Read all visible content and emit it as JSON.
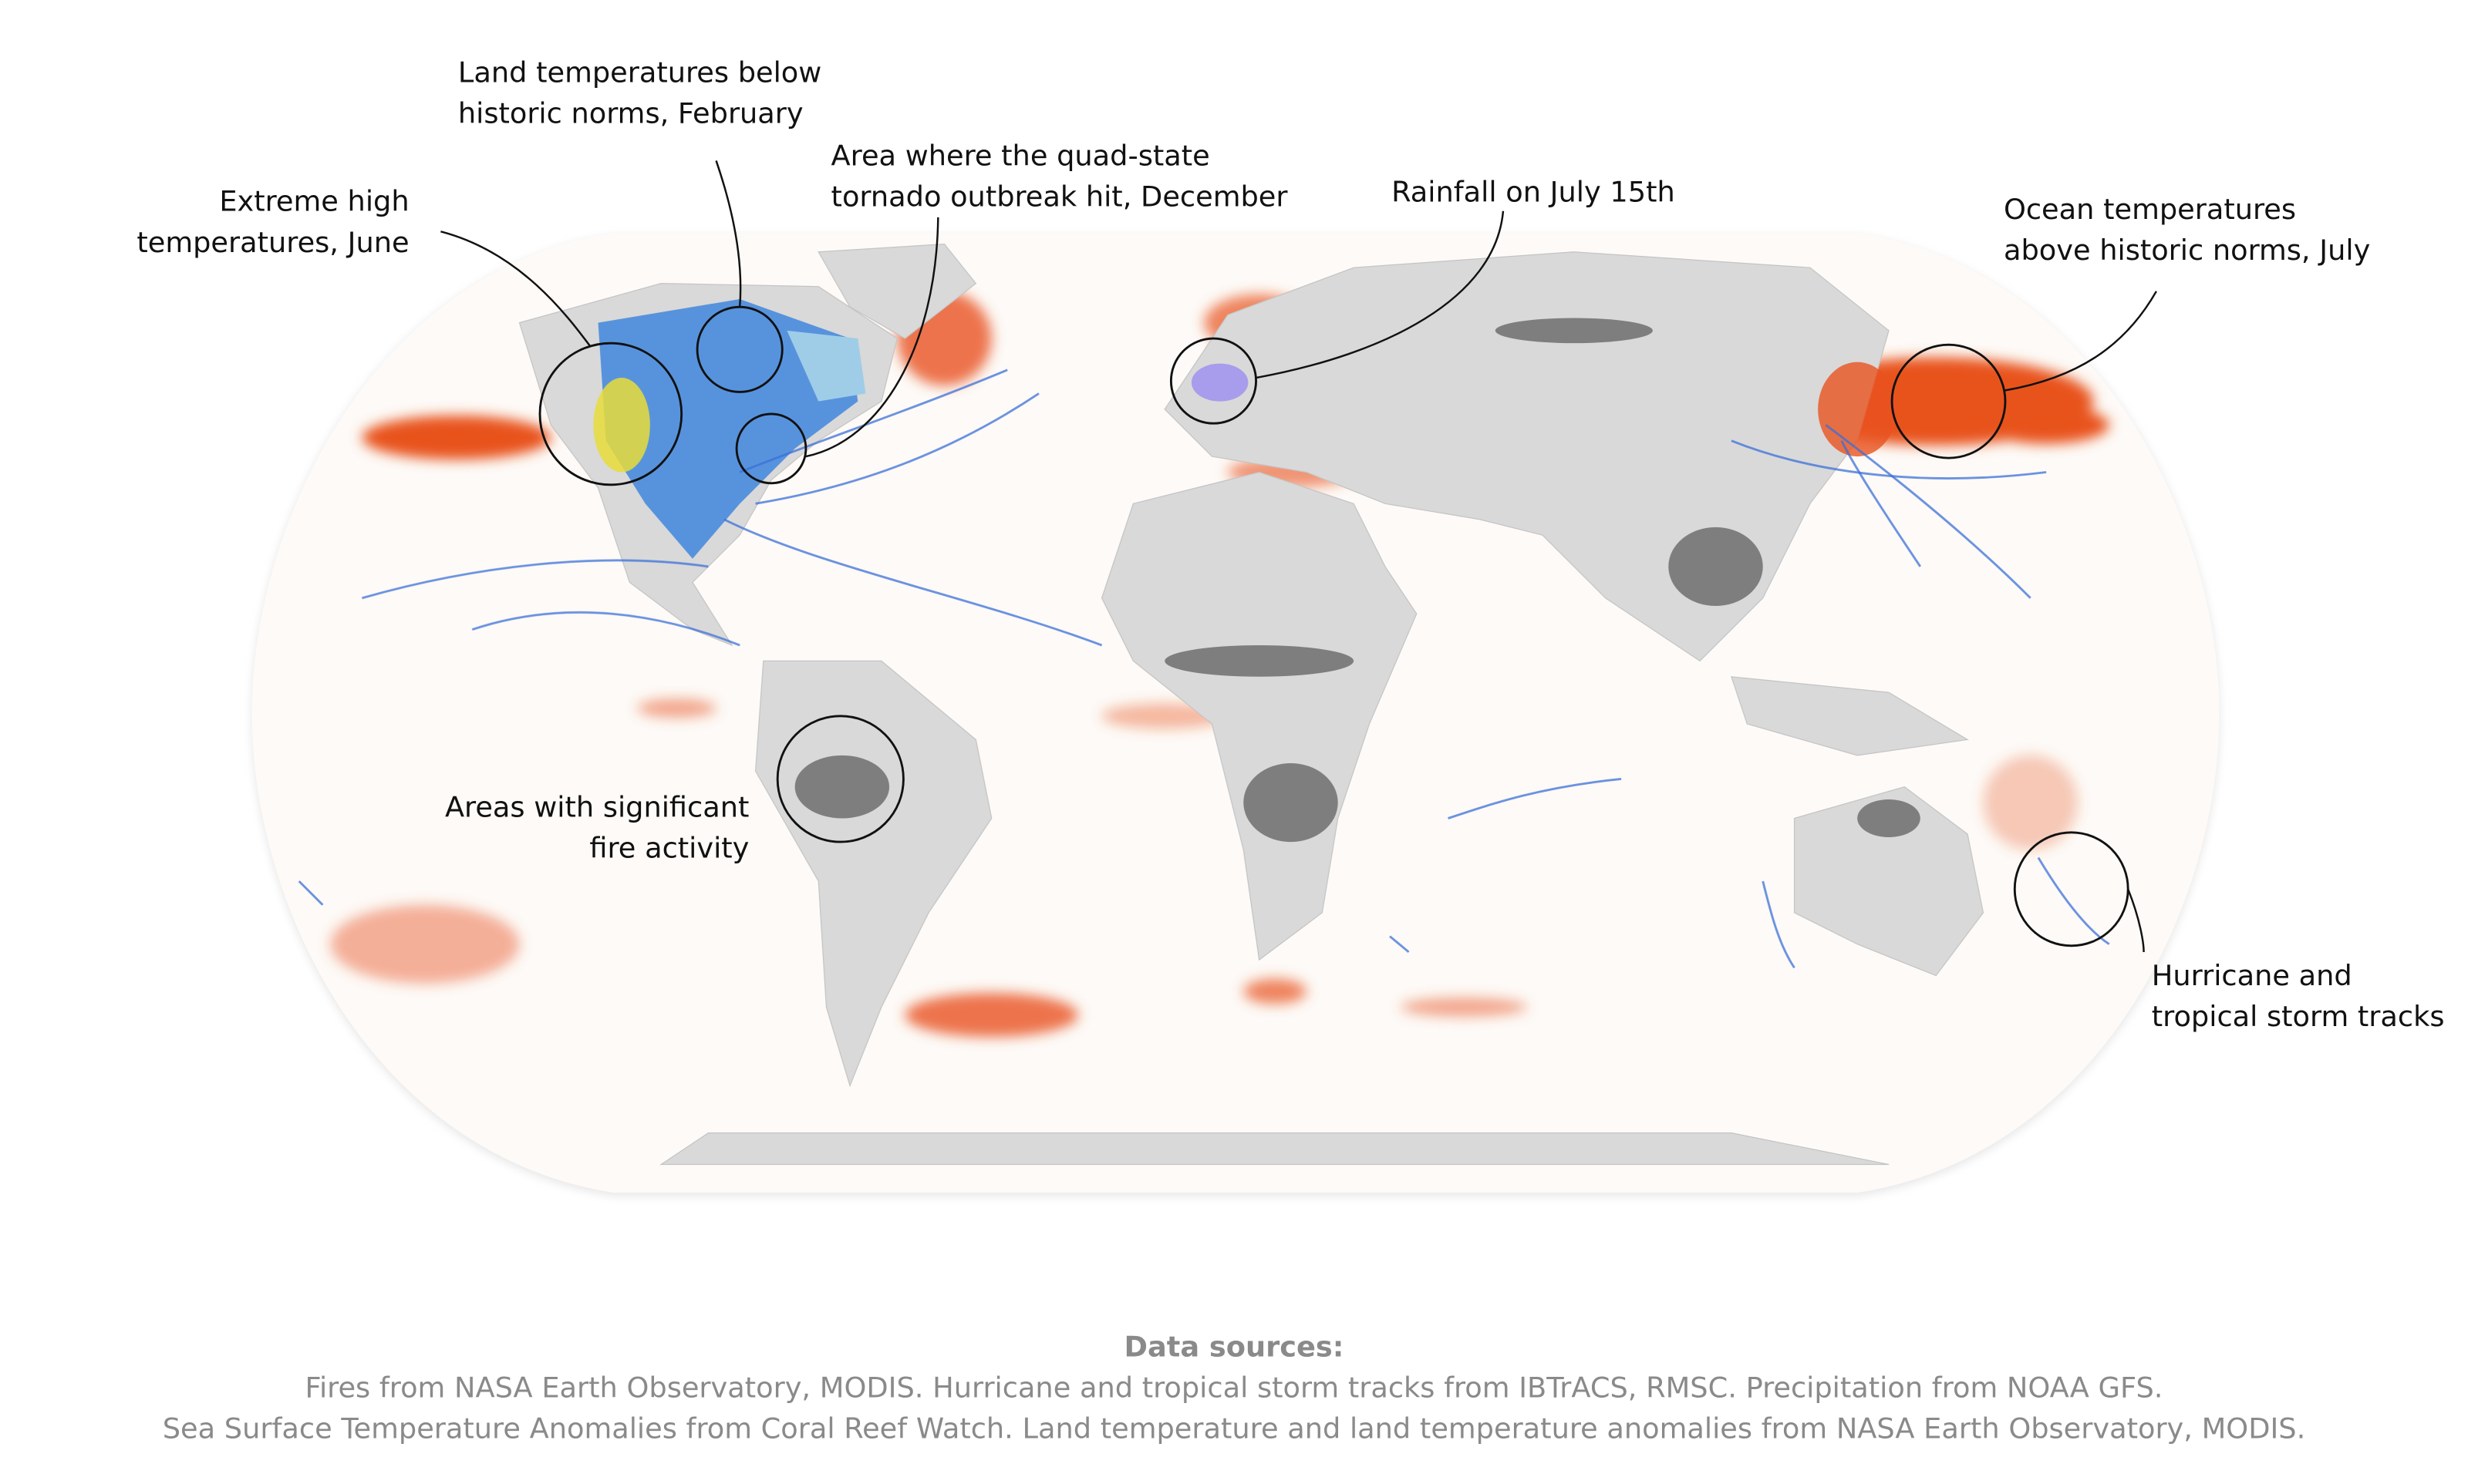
{
  "annotations": [
    {
      "lines": [
        "Extreme high",
        "temperatures, June"
      ]
    },
    {
      "lines": [
        "Land temperatures below",
        "historic norms, February"
      ]
    },
    {
      "lines": [
        "Area where the quad-state",
        "tornado outbreak hit, December"
      ]
    },
    {
      "lines": [
        "Rainfall on July 15th"
      ]
    },
    {
      "lines": [
        "Ocean temperatures",
        "above historic norms, July"
      ]
    },
    {
      "lines": [
        "Areas with significant",
        "fire activity"
      ]
    },
    {
      "lines": [
        "Hurricane and",
        "tropical storm tracks"
      ]
    }
  ],
  "sources": {
    "heading": "Data sources:",
    "lines": [
      "Fires from NASA Earth Observatory, MODIS. Hurricane and tropical storm tracks from IBTrACS, RMSC. Precipitation from NOAA GFS.",
      "Sea Surface Temperature Anomalies from Coral Reef Watch. Land temperature and land temperature anomalies from NASA Earth Observatory, MODIS."
    ]
  }
}
